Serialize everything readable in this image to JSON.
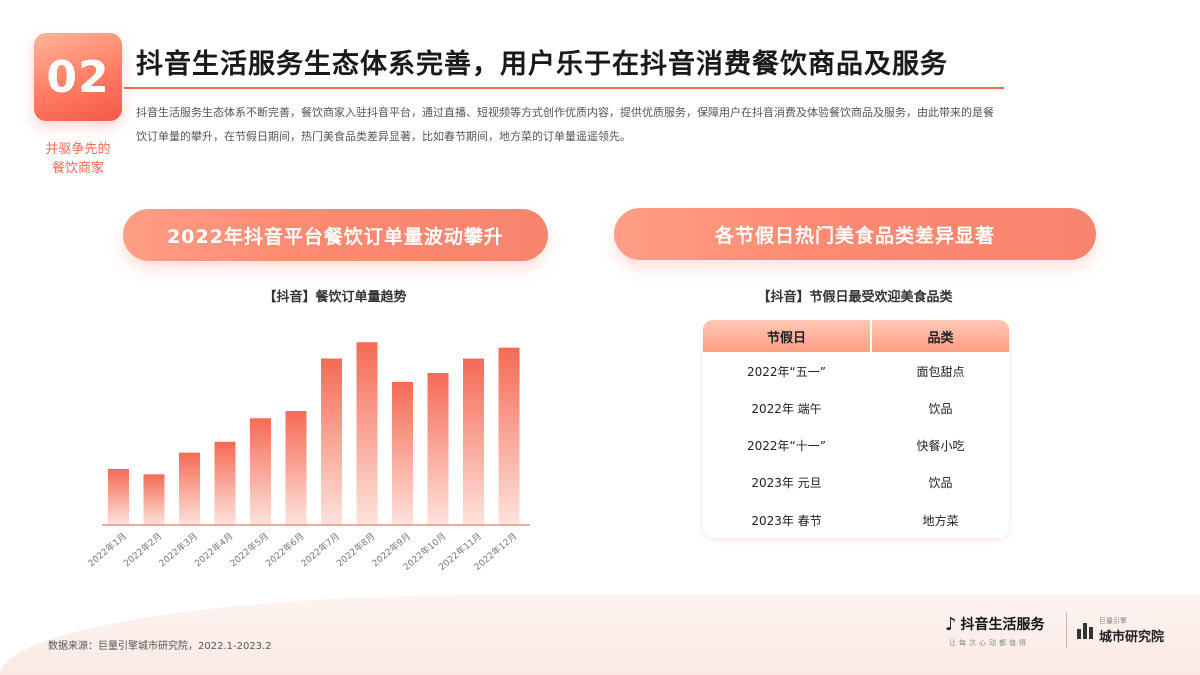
{
  "section": {
    "number": "02",
    "caption_line1": "并驱争先的",
    "caption_line2": "餐饮商家"
  },
  "title": "抖音生活服务生态体系完善，用户乐于在抖音消费餐饮商品及服务",
  "intro": "抖音生活服务生态体系不断完善，餐饮商家入驻抖音平台，通过直播、短视频等方式创作优质内容，提供优质服务，保障用户在抖音消费及体验餐饮商品及服务，由此带来的是餐饮订单量的攀升，在节假日期间，热门美食品类差异显著，比如春节期间，地方菜的订单量遥遥领先。",
  "left_panel": {
    "pill": "2022年抖音平台餐饮订单量波动攀升",
    "subtitle": "【抖音】餐饮订单量趋势"
  },
  "right_panel": {
    "pill": "各节假日热门美食品类差异显著",
    "subtitle": "【抖音】节假日最受欢迎美食品类",
    "table": {
      "headers": [
        "节假日",
        "品类"
      ],
      "rows": [
        [
          "2022年“五一”",
          "面包甜点"
        ],
        [
          "2022年 端午",
          "饮品"
        ],
        [
          "2022年“十一”",
          "快餐小吃"
        ],
        [
          "2023年 元旦",
          "饮品"
        ],
        [
          "2023年 春节",
          "地方菜"
        ]
      ]
    }
  },
  "chart_data": {
    "type": "bar",
    "title": "【抖音】餐饮订单量趋势",
    "categories": [
      "2022年1月",
      "2022年2月",
      "2022年3月",
      "2022年4月",
      "2022年5月",
      "2022年6月",
      "2022年7月",
      "2022年8月",
      "2022年9月",
      "2022年10月",
      "2022年11月",
      "2022年12月"
    ],
    "values": [
      31,
      28,
      40,
      46,
      59,
      63,
      92,
      101,
      79,
      84,
      92,
      98
    ],
    "ylim": [
      0,
      105
    ],
    "grid": false,
    "legend": "none",
    "colors": {
      "bar_top": "#f56a55",
      "bar_bottom": "#fde3dc"
    }
  },
  "footer": {
    "source": "数据来源：巨量引擎城市研究院，2022.1-2023.2",
    "logo1_text": "抖音生活服务",
    "logo1_tag": "让每次心动都值得",
    "logo2_small": "巨量引擎",
    "logo2_text": "城市研究院"
  }
}
